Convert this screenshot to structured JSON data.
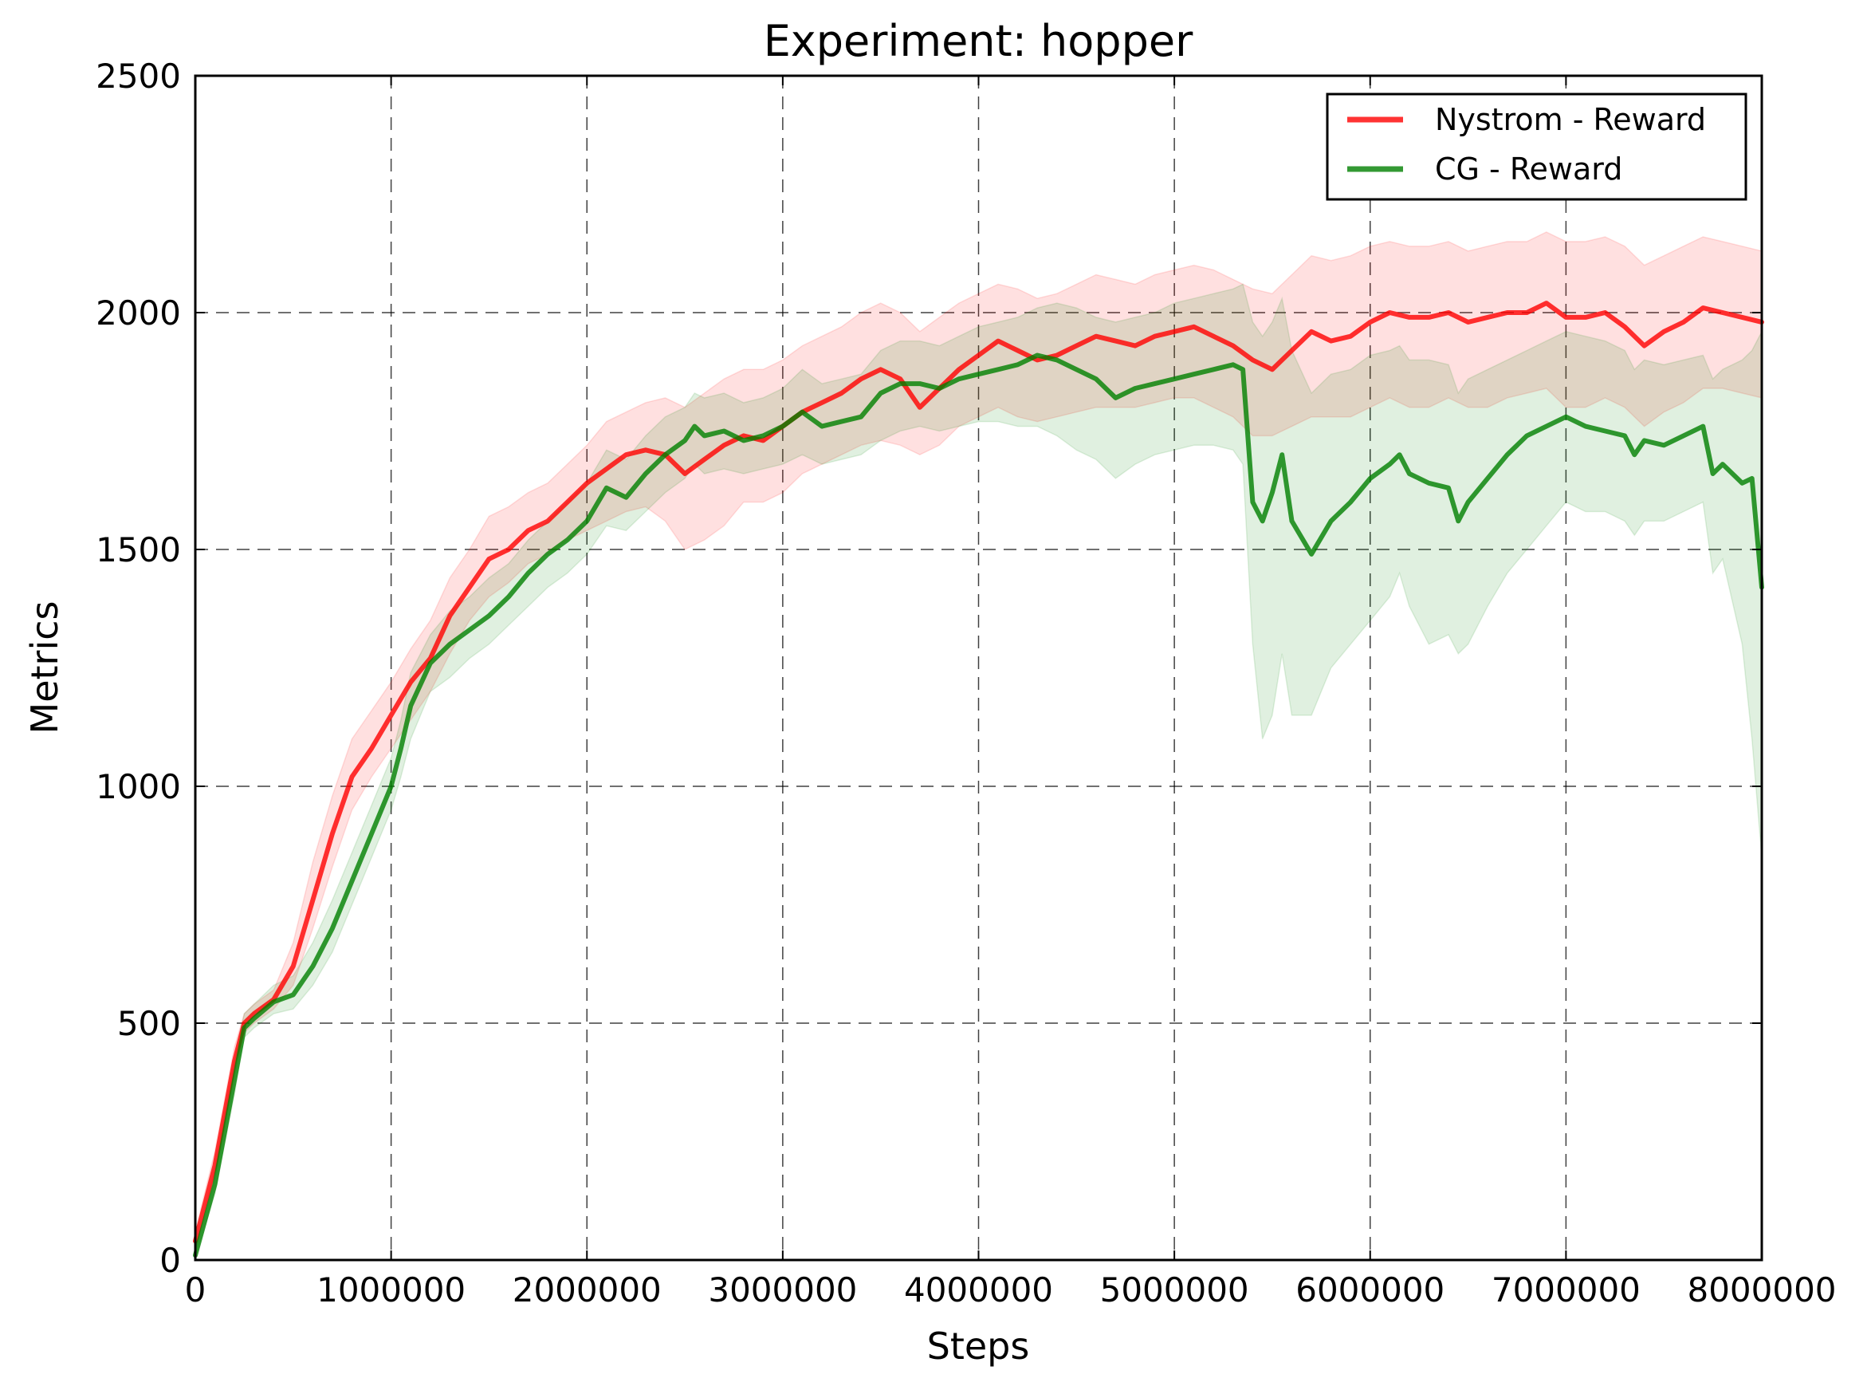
{
  "chart_data": {
    "type": "line",
    "title": "Experiment: hopper",
    "xlabel": "Steps",
    "ylabel": "Metrics",
    "xlim": [
      0,
      8000000
    ],
    "ylim": [
      0,
      2500
    ],
    "xticks": [
      0,
      1000000,
      2000000,
      3000000,
      4000000,
      5000000,
      6000000,
      7000000,
      8000000
    ],
    "xtick_labels": [
      "0",
      "1000000",
      "2000000",
      "3000000",
      "4000000",
      "5000000",
      "6000000",
      "7000000",
      "8000000"
    ],
    "yticks": [
      0,
      500,
      1000,
      1500,
      2000,
      2500
    ],
    "ytick_labels": [
      "0",
      "500",
      "1000",
      "1500",
      "2000",
      "2500"
    ],
    "grid": true,
    "legend_position": "top-right",
    "series": [
      {
        "name": "Nystrom - Reward",
        "color": "#ff0000",
        "x": [
          0,
          100000,
          200000,
          250000,
          300000,
          400000,
          500000,
          600000,
          700000,
          800000,
          900000,
          1000000,
          1100000,
          1200000,
          1300000,
          1400000,
          1500000,
          1600000,
          1700000,
          1800000,
          1900000,
          2000000,
          2100000,
          2200000,
          2300000,
          2400000,
          2500000,
          2600000,
          2700000,
          2800000,
          2900000,
          3000000,
          3100000,
          3200000,
          3300000,
          3400000,
          3500000,
          3600000,
          3700000,
          3800000,
          3900000,
          4000000,
          4100000,
          4200000,
          4300000,
          4400000,
          4500000,
          4600000,
          4700000,
          4800000,
          4900000,
          5000000,
          5100000,
          5200000,
          5300000,
          5400000,
          5500000,
          5600000,
          5700000,
          5800000,
          5900000,
          6000000,
          6100000,
          6200000,
          6300000,
          6400000,
          6500000,
          6600000,
          6700000,
          6800000,
          6900000,
          7000000,
          7100000,
          7200000,
          7300000,
          7400000,
          7500000,
          7600000,
          7700000,
          7800000,
          7900000,
          8000000
        ],
        "y": [
          40,
          200,
          420,
          500,
          520,
          550,
          620,
          760,
          900,
          1020,
          1080,
          1150,
          1220,
          1270,
          1360,
          1420,
          1480,
          1500,
          1540,
          1560,
          1600,
          1640,
          1670,
          1700,
          1710,
          1700,
          1660,
          1690,
          1720,
          1740,
          1730,
          1760,
          1790,
          1810,
          1830,
          1860,
          1880,
          1860,
          1800,
          1840,
          1880,
          1910,
          1940,
          1920,
          1900,
          1910,
          1930,
          1950,
          1940,
          1930,
          1950,
          1960,
          1970,
          1950,
          1930,
          1900,
          1880,
          1920,
          1960,
          1940,
          1950,
          1980,
          2000,
          1990,
          1990,
          2000,
          1980,
          1990,
          2000,
          2000,
          2020,
          1990,
          1990,
          2000,
          1970,
          1930,
          1960,
          1980,
          2010,
          2000,
          1990,
          1980
        ],
        "band_low": [
          20,
          170,
          390,
          480,
          500,
          530,
          580,
          700,
          830,
          950,
          1020,
          1080,
          1140,
          1200,
          1280,
          1350,
          1400,
          1430,
          1470,
          1490,
          1520,
          1540,
          1560,
          1580,
          1590,
          1560,
          1500,
          1520,
          1550,
          1600,
          1600,
          1620,
          1660,
          1680,
          1700,
          1720,
          1730,
          1720,
          1700,
          1720,
          1760,
          1780,
          1800,
          1780,
          1770,
          1780,
          1790,
          1800,
          1800,
          1800,
          1810,
          1820,
          1820,
          1800,
          1780,
          1740,
          1740,
          1760,
          1780,
          1780,
          1780,
          1800,
          1820,
          1800,
          1800,
          1820,
          1800,
          1800,
          1820,
          1830,
          1840,
          1800,
          1800,
          1820,
          1800,
          1760,
          1790,
          1810,
          1840,
          1840,
          1830,
          1820
        ],
        "band_high": [
          60,
          230,
          450,
          520,
          540,
          570,
          670,
          840,
          980,
          1100,
          1160,
          1220,
          1290,
          1350,
          1440,
          1500,
          1570,
          1590,
          1620,
          1640,
          1680,
          1720,
          1770,
          1790,
          1810,
          1820,
          1800,
          1830,
          1860,
          1880,
          1880,
          1900,
          1930,
          1950,
          1970,
          2000,
          2020,
          2000,
          1960,
          1990,
          2020,
          2040,
          2060,
          2050,
          2030,
          2040,
          2060,
          2080,
          2070,
          2060,
          2080,
          2090,
          2100,
          2090,
          2070,
          2050,
          2040,
          2080,
          2120,
          2110,
          2120,
          2140,
          2150,
          2140,
          2140,
          2150,
          2130,
          2140,
          2150,
          2150,
          2170,
          2150,
          2150,
          2160,
          2140,
          2100,
          2120,
          2140,
          2160,
          2150,
          2140,
          2130
        ]
      },
      {
        "name": "CG - Reward",
        "color": "#008000",
        "x": [
          0,
          100000,
          200000,
          250000,
          300000,
          400000,
          500000,
          600000,
          700000,
          800000,
          900000,
          1000000,
          1050000,
          1100000,
          1200000,
          1300000,
          1400000,
          1500000,
          1600000,
          1700000,
          1800000,
          1900000,
          2000000,
          2100000,
          2200000,
          2300000,
          2400000,
          2500000,
          2550000,
          2600000,
          2700000,
          2800000,
          2900000,
          3000000,
          3100000,
          3200000,
          3300000,
          3400000,
          3500000,
          3600000,
          3700000,
          3800000,
          3900000,
          4000000,
          4100000,
          4200000,
          4300000,
          4400000,
          4500000,
          4600000,
          4700000,
          4800000,
          4900000,
          5000000,
          5100000,
          5200000,
          5300000,
          5350000,
          5400000,
          5450000,
          5500000,
          5550000,
          5600000,
          5700000,
          5800000,
          5900000,
          6000000,
          6100000,
          6150000,
          6200000,
          6300000,
          6400000,
          6450000,
          6500000,
          6600000,
          6700000,
          6800000,
          6900000,
          7000000,
          7100000,
          7200000,
          7300000,
          7350000,
          7400000,
          7500000,
          7600000,
          7700000,
          7750000,
          7800000,
          7900000,
          7950000,
          8000000
        ],
        "y": [
          10,
          160,
          380,
          490,
          510,
          545,
          560,
          620,
          700,
          800,
          900,
          1000,
          1080,
          1170,
          1260,
          1300,
          1330,
          1360,
          1400,
          1450,
          1490,
          1520,
          1560,
          1630,
          1610,
          1660,
          1700,
          1730,
          1760,
          1740,
          1750,
          1730,
          1740,
          1760,
          1790,
          1760,
          1770,
          1780,
          1830,
          1850,
          1850,
          1840,
          1860,
          1870,
          1880,
          1890,
          1910,
          1900,
          1880,
          1860,
          1820,
          1840,
          1850,
          1860,
          1870,
          1880,
          1890,
          1880,
          1600,
          1560,
          1620,
          1700,
          1560,
          1490,
          1560,
          1600,
          1650,
          1680,
          1700,
          1660,
          1640,
          1630,
          1560,
          1600,
          1650,
          1700,
          1740,
          1760,
          1780,
          1760,
          1750,
          1740,
          1700,
          1730,
          1720,
          1740,
          1760,
          1660,
          1680,
          1640,
          1650,
          1420
        ],
        "band_low": [
          5,
          140,
          350,
          470,
          490,
          520,
          530,
          580,
          650,
          750,
          850,
          950,
          1020,
          1100,
          1200,
          1230,
          1270,
          1300,
          1340,
          1380,
          1420,
          1450,
          1490,
          1550,
          1540,
          1580,
          1620,
          1650,
          1680,
          1660,
          1670,
          1660,
          1670,
          1680,
          1700,
          1680,
          1690,
          1700,
          1730,
          1750,
          1760,
          1750,
          1760,
          1770,
          1770,
          1760,
          1760,
          1740,
          1710,
          1690,
          1650,
          1680,
          1700,
          1710,
          1720,
          1720,
          1710,
          1680,
          1300,
          1100,
          1150,
          1280,
          1150,
          1150,
          1250,
          1300,
          1350,
          1400,
          1450,
          1380,
          1300,
          1320,
          1280,
          1300,
          1380,
          1450,
          1500,
          1550,
          1600,
          1580,
          1580,
          1560,
          1530,
          1560,
          1560,
          1580,
          1600,
          1450,
          1480,
          1300,
          1100,
          850
        ],
        "band_high": [
          20,
          190,
          420,
          520,
          540,
          580,
          600,
          670,
          760,
          860,
          960,
          1060,
          1140,
          1240,
          1320,
          1370,
          1400,
          1440,
          1470,
          1520,
          1560,
          1600,
          1640,
          1710,
          1690,
          1740,
          1780,
          1800,
          1830,
          1820,
          1830,
          1810,
          1820,
          1840,
          1880,
          1850,
          1860,
          1870,
          1920,
          1940,
          1940,
          1930,
          1950,
          1970,
          1980,
          1990,
          2010,
          2020,
          2010,
          1990,
          1980,
          1990,
          2000,
          2020,
          2030,
          2040,
          2050,
          2060,
          1980,
          1950,
          1980,
          2030,
          1920,
          1830,
          1870,
          1880,
          1910,
          1920,
          1930,
          1900,
          1900,
          1890,
          1830,
          1860,
          1880,
          1900,
          1920,
          1940,
          1960,
          1950,
          1940,
          1920,
          1880,
          1900,
          1890,
          1900,
          1910,
          1860,
          1880,
          1900,
          1920,
          1960
        ]
      }
    ]
  }
}
